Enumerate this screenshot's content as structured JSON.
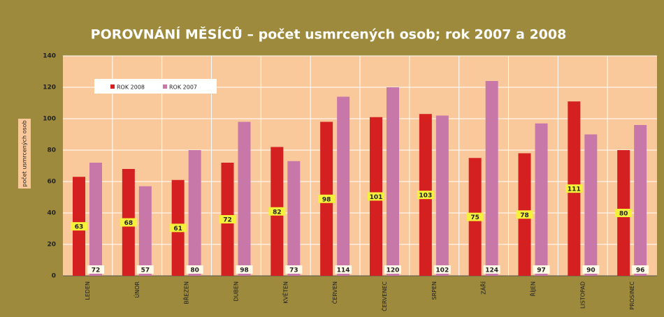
{
  "chart_data": {
    "type": "bar",
    "title": "POROVNÁNÍ MĚSÍCŮ – počet usmrcených osob;  rok 2007 a 2008",
    "y_label": "počet usmrcených osob",
    "categories": [
      "LEDEN",
      "ÚNOR",
      "BŘEZEN",
      "DUBEN",
      "KVĚTEN",
      "ČERVEN",
      "ČERVENEC",
      "SRPEN",
      "ZÁŘÍ",
      "ŘÍJEN",
      "LISTOPAD",
      "PROSINEC"
    ],
    "series": [
      {
        "name": "ROK 2008",
        "color": "#d42020",
        "values": [
          63,
          68,
          61,
          72,
          82,
          98,
          101,
          103,
          75,
          78,
          111,
          80
        ]
      },
      {
        "name": "ROK 2007",
        "color": "#c878a8",
        "values": [
          72,
          57,
          80,
          98,
          73,
          114,
          120,
          102,
          124,
          97,
          90,
          96
        ]
      }
    ],
    "ylim": [
      0,
      140
    ],
    "yticks": [
      0,
      20,
      40,
      60,
      80,
      100,
      120,
      140
    ],
    "grid": true,
    "legend": "top-left"
  }
}
